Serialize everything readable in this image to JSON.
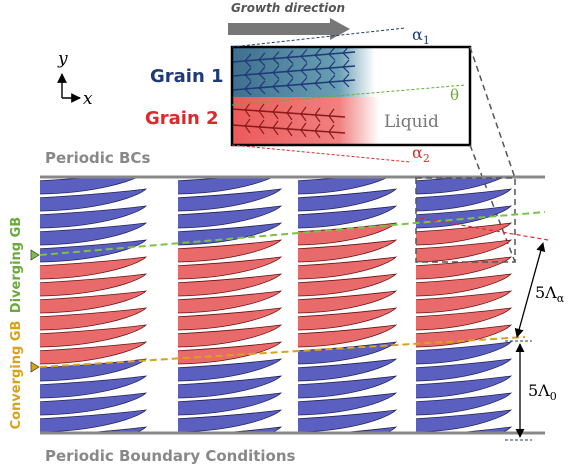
{
  "header": {
    "growth_direction": "Growth direction"
  },
  "inset": {
    "grain_1": "Grain 1",
    "grain_2": "Grain 2",
    "liquid": "Liquid",
    "theta": "θ",
    "alpha_1": {
      "symbol": "α",
      "subscript": "1"
    },
    "alpha_2": {
      "symbol": "α",
      "subscript": "2"
    }
  },
  "axes": {
    "y": "y",
    "x": "x"
  },
  "panel": {
    "top_label": "Periodic BCs",
    "bottom_label": "Periodic Boundary Conditions",
    "diverging": "Diverging GB",
    "converging": "Converging GB",
    "spacing_alpha": {
      "symbol": "5Λ",
      "subscript": "α"
    },
    "spacing_0": {
      "symbol": "5Λ",
      "subscript": "0"
    }
  }
}
